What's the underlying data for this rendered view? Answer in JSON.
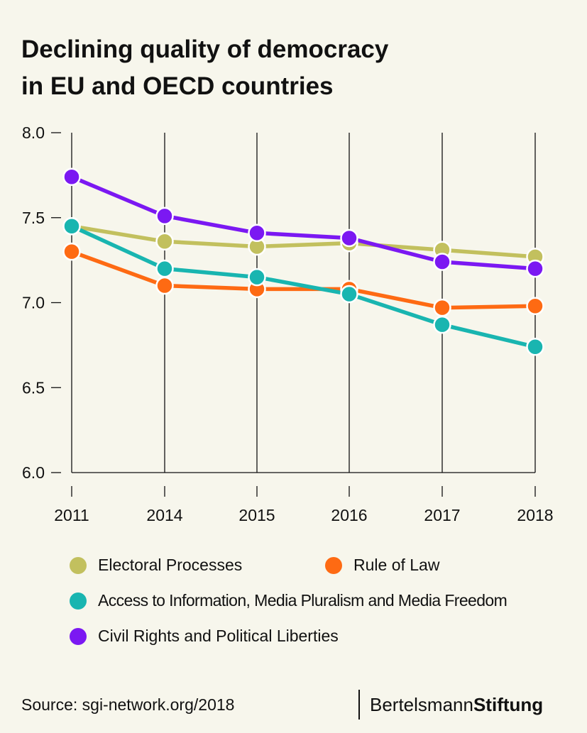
{
  "title_line1": "Declining quality of democracy",
  "title_line2": "in EU and OECD countries",
  "source": "Source: sgi-network.org/2018",
  "brand": {
    "part1": "Bertelsmann",
    "part2": "Stiftung"
  },
  "chart_data": {
    "type": "line",
    "title": "Declining quality of democracy in EU and OECD countries",
    "xlabel": "",
    "ylabel": "",
    "categories": [
      "2011",
      "2014",
      "2015",
      "2016",
      "2017",
      "2018"
    ],
    "ylim": [
      6.0,
      8.0
    ],
    "yticks": [
      "6.0",
      "6.5",
      "7.0",
      "7.5",
      "8.0"
    ],
    "grid": "vertical lines at each year",
    "legend_position": "bottom",
    "series": [
      {
        "name": "Electoral Processes",
        "color": "#c2c05e",
        "values": [
          7.45,
          7.36,
          7.33,
          7.35,
          7.31,
          7.27
        ]
      },
      {
        "name": "Rule of Law",
        "color": "#fe6a13",
        "values": [
          7.3,
          7.1,
          7.08,
          7.08,
          6.97,
          6.98
        ]
      },
      {
        "name": "Access to Information, Media Pluralism and Media Freedom",
        "color": "#19b5b0",
        "values": [
          7.45,
          7.2,
          7.15,
          7.05,
          6.87,
          6.74
        ]
      },
      {
        "name": "Civil Rights and Political Liberties",
        "color": "#7b18f2",
        "values": [
          7.74,
          7.51,
          7.41,
          7.38,
          7.24,
          7.2
        ]
      }
    ]
  }
}
